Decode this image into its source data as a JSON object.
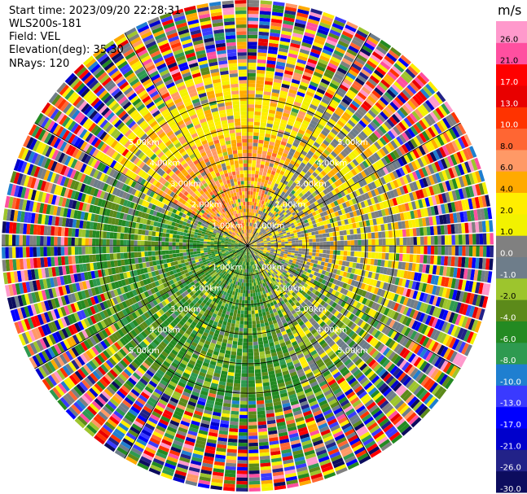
{
  "header": {
    "start_time": "Start time: 2023/09/20 22:28:31",
    "instrument": "WLS200s-181",
    "field": "Field: VEL",
    "elevation": "Elevation(deg): 35.30",
    "nrays": "NRays: 120"
  },
  "chart_data": {
    "type": "heatmap",
    "projection": "polar-ppi",
    "nrays": 120,
    "range_rings_km": [
      1,
      2,
      3,
      4,
      5
    ],
    "ring_labels": [
      "1.00km",
      "2.00km",
      "3.00km",
      "4.00km",
      "5.00km"
    ],
    "max_range_km": 5.0,
    "colorbar": {
      "unit": "m/s",
      "ticks": [
        "-30.0",
        "-26.0",
        "-21.0",
        "-17.0",
        "-13.0",
        "-10.0",
        "-8.0",
        "-6.0",
        "-4.0",
        "-2.0",
        "-1.0",
        "0.0",
        "1.0",
        "2.0",
        "4.0",
        "6.0",
        "8.0",
        "10.0",
        "13.0",
        "17.0",
        "21.0",
        "26.0"
      ],
      "colors": [
        "#0c0c5e",
        "#222288",
        "#0000cc",
        "#0000ff",
        "#3a3aff",
        "#1f7fd0",
        "#2e9a50",
        "#238a22",
        "#5c8a1a",
        "#9dc52d",
        "#6e7d8a",
        "#808080",
        "#f2f200",
        "#ffee00",
        "#ffaa00",
        "#ff9966",
        "#ff6633",
        "#ff3300",
        "#e80000",
        "#ff0000",
        "#ff4fa0",
        "#ff99cc"
      ]
    },
    "field_pattern": {
      "description_sectors_deg": [
        {
          "from": -75,
          "to": 15,
          "dominant": "positive-2-10"
        },
        {
          "from": 15,
          "to": 105,
          "dominant": "near-zero"
        },
        {
          "from": 105,
          "to": 285,
          "dominant": "negative-2-8"
        }
      ]
    }
  }
}
